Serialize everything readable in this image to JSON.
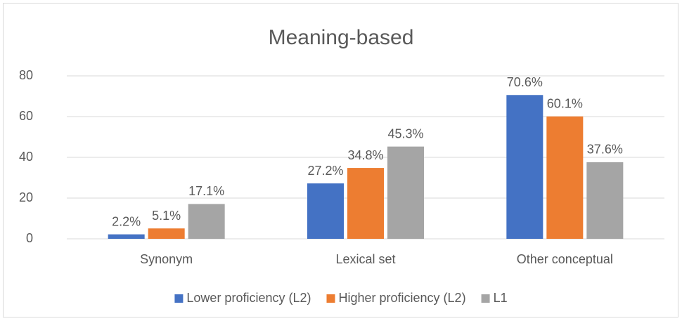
{
  "chart_data": {
    "type": "bar",
    "title": "Meaning-based",
    "categories": [
      "Synonym",
      "Lexical set",
      "Other conceptual"
    ],
    "series": [
      {
        "name": "Lower proficiency (L2)",
        "color": "#4472c4",
        "values": [
          2.2,
          27.2,
          70.6
        ],
        "value_labels": [
          "2.2%",
          "27.2%",
          "70.6%"
        ]
      },
      {
        "name": "Higher proficiency (L2)",
        "color": "#ed7d31",
        "values": [
          5.1,
          34.8,
          60.1
        ],
        "value_labels": [
          "5.1%",
          "34.8%",
          "60.1%"
        ]
      },
      {
        "name": "L1",
        "color": "#a5a5a5",
        "values": [
          17.1,
          45.3,
          37.6
        ],
        "value_labels": [
          "17.1%",
          "45.3%",
          "37.6%"
        ]
      }
    ],
    "ylim": [
      0,
      80
    ],
    "yticks": [
      0,
      20,
      40,
      60,
      80
    ],
    "grid": true,
    "legend": "bottom"
  }
}
